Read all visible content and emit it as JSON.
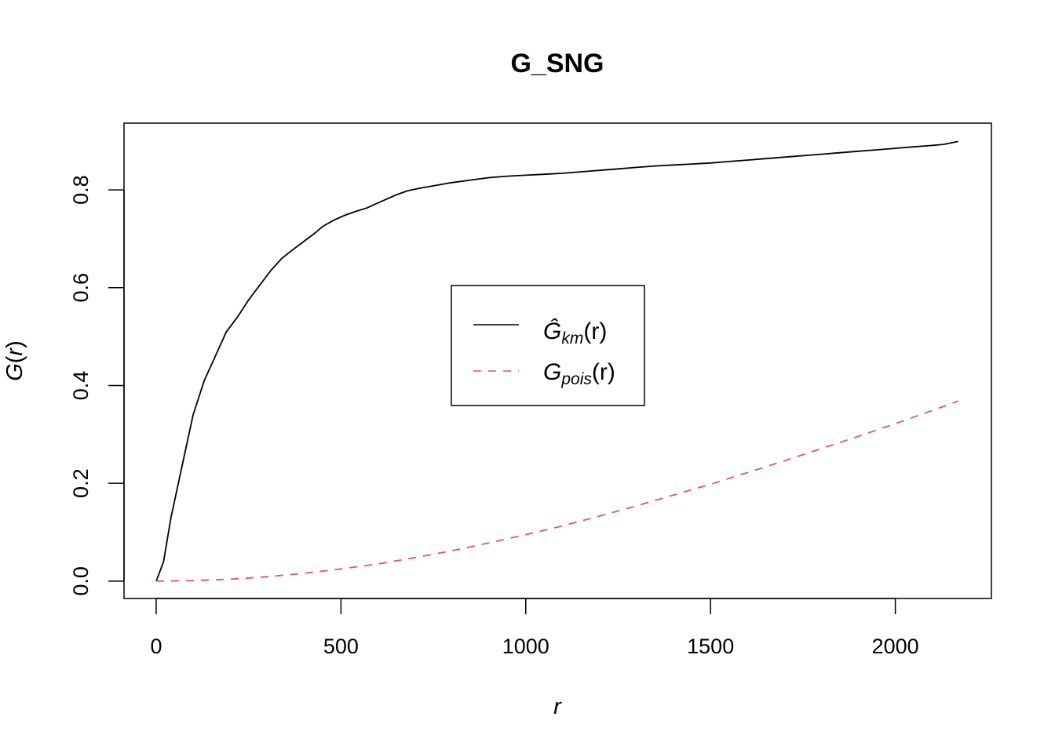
{
  "chart_data": {
    "type": "line",
    "title": "G_SNG",
    "xlabel": "r",
    "ylabel_parts": {
      "main": "G",
      "paren_open": "(",
      "var": "r",
      "paren_close": ")"
    },
    "xlim": [
      -87,
      2260
    ],
    "ylim": [
      -0.0355,
      0.9365
    ],
    "x_ticks": [
      0,
      500,
      1000,
      1500,
      2000
    ],
    "x_tick_labels": [
      "0",
      "500",
      "1000",
      "1500",
      "2000"
    ],
    "y_ticks": [
      0.0,
      0.2,
      0.4,
      0.6,
      0.8
    ],
    "y_tick_labels": [
      "0.0",
      "0.2",
      "0.4",
      "0.6",
      "0.8"
    ],
    "legend": {
      "placement": "center",
      "entries": [
        {
          "main": "Ĝ",
          "sub": "km",
          "arg": "(r)"
        },
        {
          "main": "G",
          "sub": "pois",
          "arg": "(r)"
        }
      ]
    },
    "series": [
      {
        "key": "km",
        "color": "#000000",
        "dash": "solid",
        "x": [
          0,
          20,
          40,
          60,
          80,
          100,
          130,
          160,
          190,
          220,
          250,
          280,
          310,
          340,
          370,
          400,
          430,
          450,
          480,
          510,
          540,
          570,
          590,
          620,
          650,
          680,
          710,
          740,
          770,
          800,
          850,
          900,
          950,
          1000,
          1050,
          1100,
          1150,
          1200,
          1250,
          1300,
          1350,
          1400,
          1450,
          1500,
          1550,
          1600,
          1650,
          1700,
          1750,
          1800,
          1850,
          1900,
          1950,
          2000,
          2050,
          2100,
          2130,
          2150,
          2170
        ],
        "y": [
          0.0,
          0.04,
          0.13,
          0.2,
          0.27,
          0.34,
          0.41,
          0.46,
          0.51,
          0.54,
          0.575,
          0.605,
          0.635,
          0.66,
          0.678,
          0.695,
          0.712,
          0.725,
          0.738,
          0.748,
          0.756,
          0.763,
          0.77,
          0.78,
          0.79,
          0.798,
          0.803,
          0.807,
          0.811,
          0.815,
          0.82,
          0.825,
          0.828,
          0.83,
          0.832,
          0.834,
          0.837,
          0.84,
          0.843,
          0.846,
          0.849,
          0.851,
          0.853,
          0.855,
          0.858,
          0.861,
          0.864,
          0.867,
          0.87,
          0.873,
          0.876,
          0.879,
          0.882,
          0.885,
          0.888,
          0.891,
          0.893,
          0.896,
          0.899
        ]
      },
      {
        "key": "pois",
        "color": "#DF536B",
        "dash": "dashed",
        "x": [
          0,
          100,
          200,
          300,
          400,
          500,
          600,
          700,
          800,
          900,
          1000,
          1100,
          1200,
          1300,
          1400,
          1500,
          1600,
          1700,
          1800,
          1900,
          2000,
          2100,
          2170
        ],
        "y": [
          0.0,
          0.001,
          0.004,
          0.009,
          0.016,
          0.025,
          0.035,
          0.048,
          0.062,
          0.078,
          0.095,
          0.113,
          0.133,
          0.154,
          0.176,
          0.198,
          0.222,
          0.246,
          0.271,
          0.296,
          0.322,
          0.349,
          0.368
        ]
      }
    ]
  }
}
